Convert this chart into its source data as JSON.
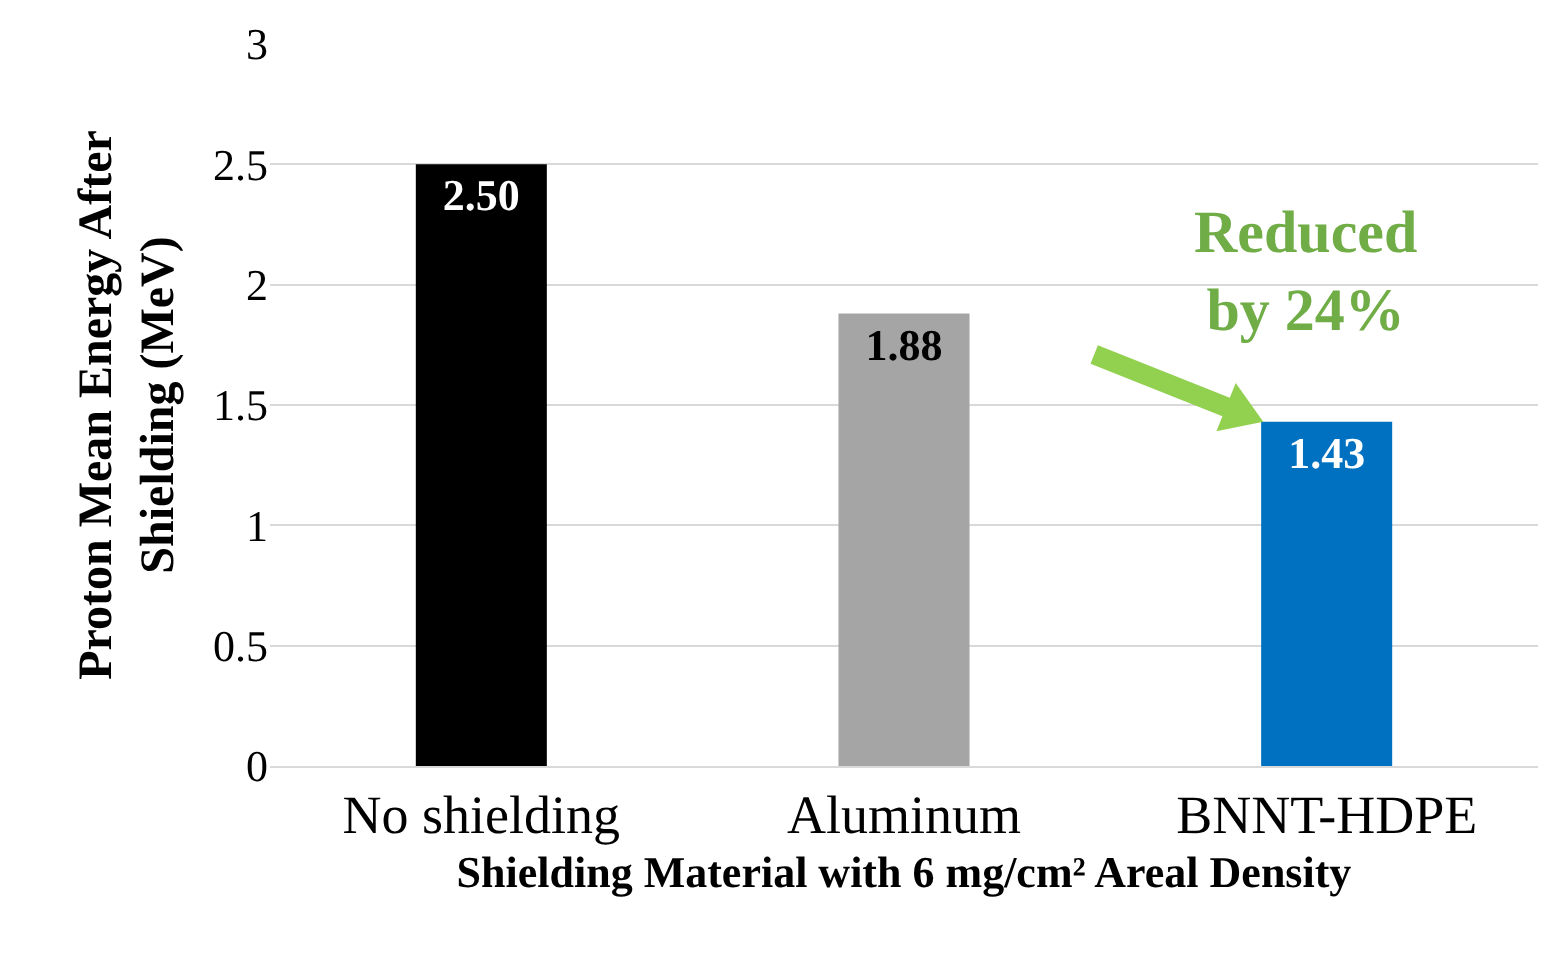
{
  "chart_data": {
    "type": "bar",
    "categories": [
      "No shielding",
      "Aluminum",
      "BNNT-HDPE"
    ],
    "values": [
      2.5,
      1.88,
      1.43
    ],
    "colors": [
      "#000000",
      "#a5a5a5",
      "#0070c0"
    ],
    "value_labels": [
      "2.50",
      "1.88",
      "1.43"
    ],
    "ylim": [
      0,
      3
    ],
    "yticks": [
      0,
      0.5,
      1,
      1.5,
      2,
      2.5,
      3
    ],
    "xlabel": "Shielding Material with 6 mg/cm² Areal Density",
    "ylabel": "Proton Mean Energy After Shielding (MeV)",
    "grid": "y",
    "annotations": [
      {
        "text": "Reduced by 24%",
        "x": "BNNT-HDPE",
        "y": 1.43
      }
    ]
  }
}
